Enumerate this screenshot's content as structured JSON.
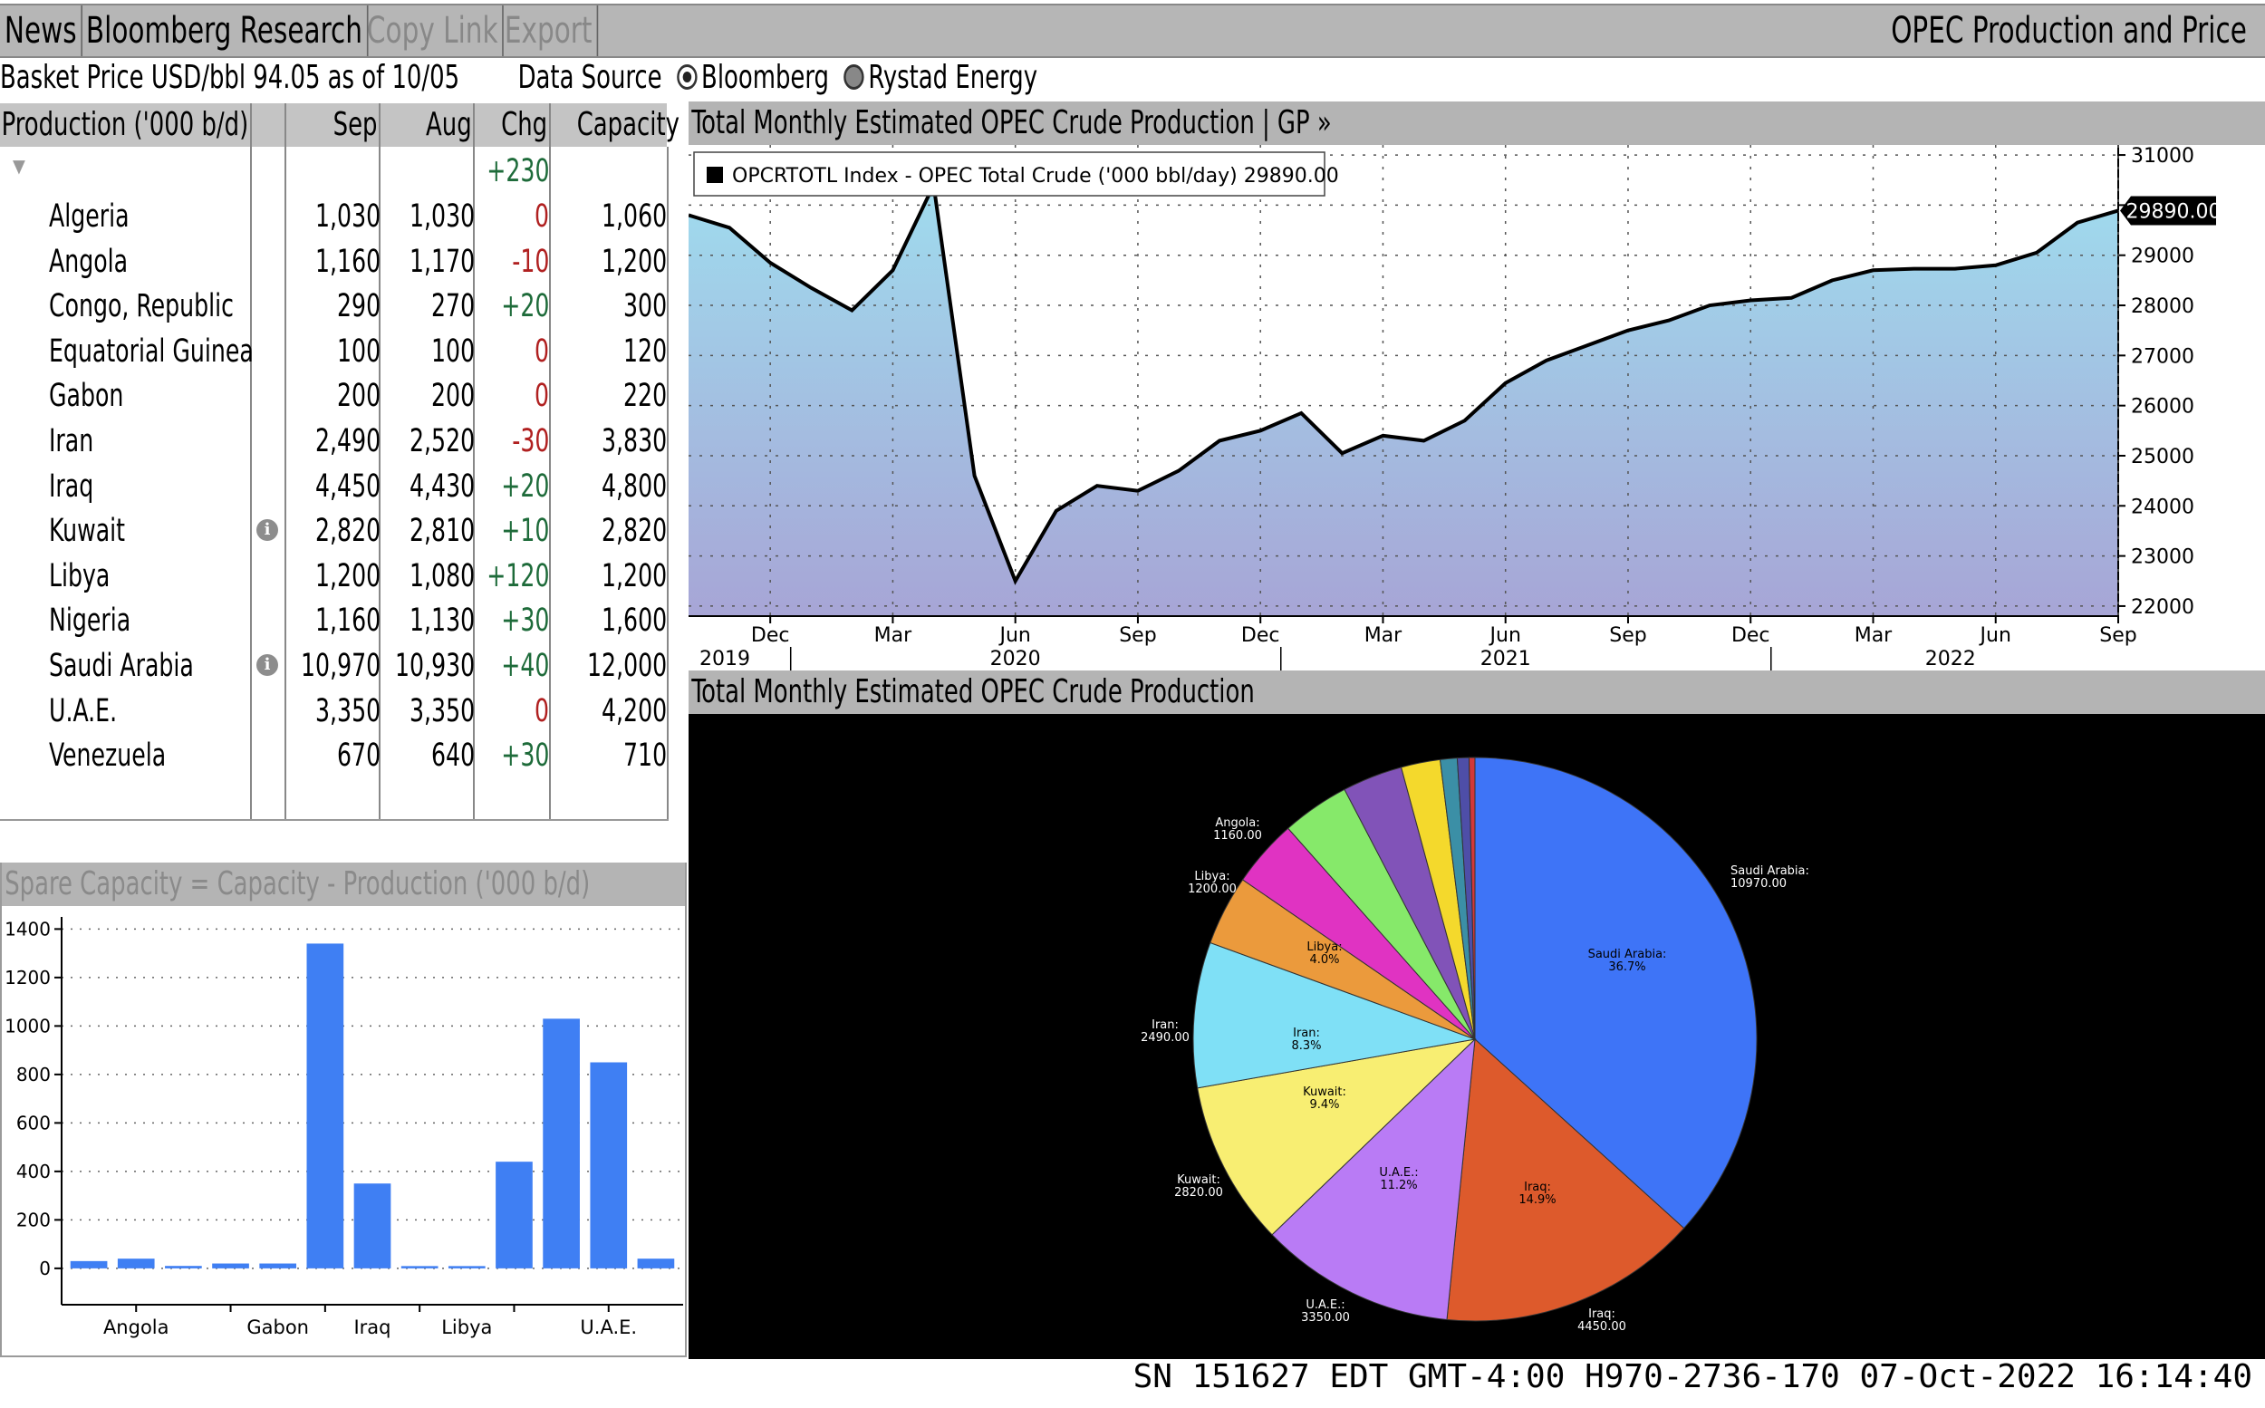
{
  "toolbar": {
    "items": [
      "News",
      "Bloomberg Research",
      "Copy Link",
      "Export"
    ],
    "title": "OPEC Production and Price"
  },
  "basket": {
    "text": "Basket Price USD/bbl  94.05 as of 10/05",
    "data_source_label": "Data Source",
    "options": [
      "Bloomberg",
      "Rystad Energy"
    ],
    "selected": "Bloomberg"
  },
  "table": {
    "headers": [
      "Production ('000 b/d)",
      "Sep",
      "Aug",
      "Chg",
      "Capacity"
    ],
    "total_chg": "+230",
    "rows": [
      {
        "country": "Algeria",
        "sep": "1,030",
        "aug": "1,030",
        "chg": "0",
        "cap": "1,060",
        "info": false
      },
      {
        "country": "Angola",
        "sep": "1,160",
        "aug": "1,170",
        "chg": "-10",
        "cap": "1,200",
        "info": false
      },
      {
        "country": "Congo, Republic",
        "sep": "290",
        "aug": "270",
        "chg": "+20",
        "cap": "300",
        "info": false
      },
      {
        "country": "Equatorial Guinea",
        "sep": "100",
        "aug": "100",
        "chg": "0",
        "cap": "120",
        "info": false
      },
      {
        "country": "Gabon",
        "sep": "200",
        "aug": "200",
        "chg": "0",
        "cap": "220",
        "info": false
      },
      {
        "country": "Iran",
        "sep": "2,490",
        "aug": "2,520",
        "chg": "-30",
        "cap": "3,830",
        "info": false
      },
      {
        "country": "Iraq",
        "sep": "4,450",
        "aug": "4,430",
        "chg": "+20",
        "cap": "4,800",
        "info": false
      },
      {
        "country": "Kuwait",
        "sep": "2,820",
        "aug": "2,810",
        "chg": "+10",
        "cap": "2,820",
        "info": true
      },
      {
        "country": "Libya",
        "sep": "1,200",
        "aug": "1,080",
        "chg": "+120",
        "cap": "1,200",
        "info": false
      },
      {
        "country": "Nigeria",
        "sep": "1,160",
        "aug": "1,130",
        "chg": "+30",
        "cap": "1,600",
        "info": false
      },
      {
        "country": "Saudi Arabia",
        "sep": "10,970",
        "aug": "10,930",
        "chg": "+40",
        "cap": "12,000",
        "info": true
      },
      {
        "country": "U.A.E.",
        "sep": "3,350",
        "aug": "3,350",
        "chg": "0",
        "cap": "4,200",
        "info": false
      },
      {
        "country": "Venezuela",
        "sep": "670",
        "aug": "640",
        "chg": "+30",
        "cap": "710",
        "info": false
      }
    ]
  },
  "spare_panel": {
    "title": "Spare Capacity = Capacity - Production ('000 b/d)"
  },
  "line_panel": {
    "title": "Total Monthly Estimated OPEC Crude Production | GP »"
  },
  "pie_panel": {
    "title": "Total Monthly Estimated OPEC Crude Production"
  },
  "status": {
    "text": "SN 151627 EDT  GMT-4:00 H970-2736-170 07-Oct-2022 16:14:40"
  },
  "chart_data": [
    {
      "type": "area",
      "legend": "OPCRTOTL Index - OPEC Total Crude ('000 bbl/day) 29890.00",
      "last_value_label": "29890.00",
      "ylim": [
        21800,
        31200
      ],
      "yticks": [
        22000,
        23000,
        24000,
        25000,
        26000,
        27000,
        28000,
        29000,
        30000,
        31000
      ],
      "x_month_labels": [
        "Dec",
        "Mar",
        "Jun",
        "Sep",
        "Dec",
        "Mar",
        "Jun",
        "Sep",
        "Dec",
        "Mar",
        "Jun",
        "Sep"
      ],
      "x_year_labels": [
        "2019",
        "2020",
        "2021",
        "2022"
      ],
      "x": [
        "2019-10",
        "2019-11",
        "2019-12",
        "2020-01",
        "2020-02",
        "2020-03",
        "2020-04",
        "2020-05",
        "2020-06",
        "2020-07",
        "2020-08",
        "2020-09",
        "2020-10",
        "2020-11",
        "2020-12",
        "2021-01",
        "2021-02",
        "2021-03",
        "2021-04",
        "2021-05",
        "2021-06",
        "2021-07",
        "2021-08",
        "2021-09",
        "2021-10",
        "2021-11",
        "2021-12",
        "2022-01",
        "2022-02",
        "2022-03",
        "2022-04",
        "2022-05",
        "2022-06",
        "2022-07",
        "2022-08",
        "2022-09"
      ],
      "values": [
        29800,
        29550,
        28850,
        28350,
        27900,
        28700,
        30400,
        24600,
        22500,
        23900,
        24400,
        24300,
        24700,
        25300,
        25500,
        25850,
        25050,
        25400,
        25300,
        25700,
        26450,
        26900,
        27200,
        27500,
        27700,
        28000,
        28100,
        28150,
        28500,
        28700,
        28730,
        28730,
        28800,
        29050,
        29650,
        29890
      ],
      "colors": {
        "line": "#000000",
        "fill_top": "#9fdcee",
        "fill_bottom": "#a7a5d6"
      }
    },
    {
      "type": "bar",
      "categories": [
        "Algeria",
        "Angola",
        "Congo, Republic",
        "Equatorial Guinea",
        "Gabon",
        "Iran",
        "Iraq",
        "Kuwait",
        "Libya",
        "Nigeria",
        "Saudi Arabia",
        "U.A.E.",
        "Venezuela"
      ],
      "visible_category_labels": [
        "Angola",
        "Gabon",
        "Iraq",
        "Libya",
        "U.A.E."
      ],
      "values": [
        30,
        40,
        10,
        20,
        20,
        1340,
        350,
        0,
        0,
        440,
        1030,
        850,
        40
      ],
      "ylim": [
        -150,
        1450
      ],
      "yticks": [
        0,
        200,
        400,
        600,
        800,
        1000,
        1200,
        1400
      ],
      "colors": {
        "bar": "#3f7ff3"
      }
    },
    {
      "type": "pie",
      "slices": [
        {
          "label": "Saudi Arabia",
          "value": 10970,
          "color": "#3e74f7",
          "outer_label": "Saudi Arabia:\n10970.00",
          "inner_label": "Saudi Arabia:\n36.7%"
        },
        {
          "label": "Iraq",
          "value": 4450,
          "color": "#dd5a2c",
          "outer_label": "Iraq:\n4450.00",
          "inner_label": "Iraq:\n14.9%"
        },
        {
          "label": "U.A.E.",
          "value": 3350,
          "color": "#b97bf5",
          "outer_label": "U.A.E.:\n3350.00",
          "inner_label": "U.A.E.:\n11.2%"
        },
        {
          "label": "Kuwait",
          "value": 2820,
          "color": "#f8ee72",
          "outer_label": "Kuwait:\n2820.00",
          "inner_label": "Kuwait:\n9.4%"
        },
        {
          "label": "Iran",
          "value": 2490,
          "color": "#7fe0f6",
          "outer_label": "Iran:\n2490.00",
          "inner_label": "Iran:\n8.3%"
        },
        {
          "label": "Libya",
          "value": 1200,
          "color": "#eb9a3c",
          "outer_label": "Libya:\n1200.00",
          "inner_label": "Libya:\n4.0%"
        },
        {
          "label": "Angola",
          "value": 1160,
          "color": "#e033c2",
          "outer_label": "Angola:\n1160.00",
          "inner_label": ""
        },
        {
          "label": "Nigeria",
          "value": 1160,
          "color": "#86e96a",
          "outer_label": "",
          "inner_label": ""
        },
        {
          "label": "Algeria",
          "value": 1030,
          "color": "#8153b8",
          "outer_label": "",
          "inner_label": ""
        },
        {
          "label": "Venezuela",
          "value": 670,
          "color": "#f4d92c",
          "outer_label": "",
          "inner_label": ""
        },
        {
          "label": "Congo, Republic",
          "value": 290,
          "color": "#3b8fa6",
          "outer_label": "",
          "inner_label": ""
        },
        {
          "label": "Gabon",
          "value": 200,
          "color": "#4e4ea8",
          "outer_label": "",
          "inner_label": ""
        },
        {
          "label": "Equatorial Guinea",
          "value": 100,
          "color": "#d43838",
          "outer_label": "",
          "inner_label": ""
        }
      ]
    }
  ]
}
